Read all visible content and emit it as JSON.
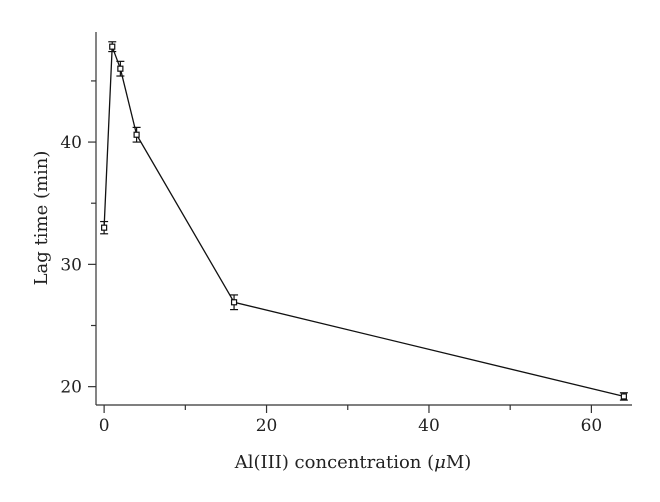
{
  "chart_data": {
    "type": "line",
    "title": "",
    "xlabel": "Al(III) concentration (μM)",
    "xlabel_prefix": "Al(III) concentration (",
    "xlabel_mu": "μ",
    "xlabel_suffix": "M)",
    "ylabel": "Lag time (min)",
    "xlim": [
      -1,
      65
    ],
    "ylim": [
      18.5,
      49
    ],
    "x_ticks": [
      0,
      20,
      40,
      60
    ],
    "x_minor_ticks": [
      10,
      30,
      50
    ],
    "y_ticks": [
      20,
      30,
      40
    ],
    "y_minor_ticks": [
      25,
      35,
      45
    ],
    "grid": false,
    "series": [
      {
        "x": [
          0,
          1,
          2,
          4,
          16,
          64
        ],
        "y": [
          33.0,
          47.8,
          46.0,
          40.6,
          26.9,
          19.2
        ],
        "err": [
          0.5,
          0.4,
          0.6,
          0.6,
          0.6,
          0.3
        ]
      }
    ]
  }
}
